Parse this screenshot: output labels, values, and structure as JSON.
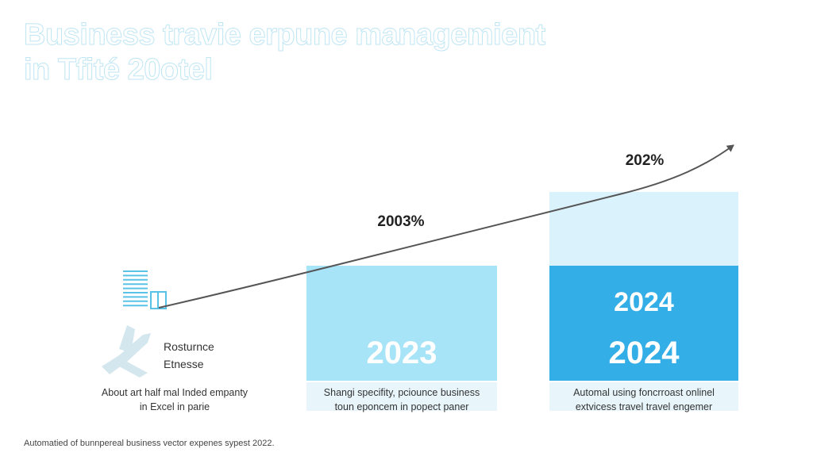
{
  "title_lines": [
    "Business travie erpune managemient",
    "in Tfité 20otel"
  ],
  "footer": "Automatied of bunnpereal business vector expenes sypest 2022.",
  "colors": {
    "light_bar": "#a8e4f8",
    "dark_bar": "#33aee6",
    "pale_bar": "#daf2fb",
    "trend_line": "#555555"
  },
  "chart_data": {
    "type": "bar",
    "categories": [
      "",
      "2023",
      "2024"
    ],
    "bar_labels": [
      null,
      "2023",
      "2024"
    ],
    "stacked_labels": [
      null,
      null,
      "2024"
    ],
    "annotations": [
      "2003%",
      "202%"
    ],
    "icon_labels": [
      "Rosturnce",
      "Etnesse"
    ],
    "descriptions": [
      [
        "About art half mal Inded empanty",
        "in Excel in parie"
      ],
      [
        "Shangi specifity, pciounce business",
        "toun eponcem in popect paner"
      ],
      [
        "Automal using foncrroast onlinel",
        "extvicess travel travel engemer"
      ]
    ],
    "icons": [
      "document-lines-icon",
      "airplane-icon"
    ],
    "trend_arrow": true
  }
}
